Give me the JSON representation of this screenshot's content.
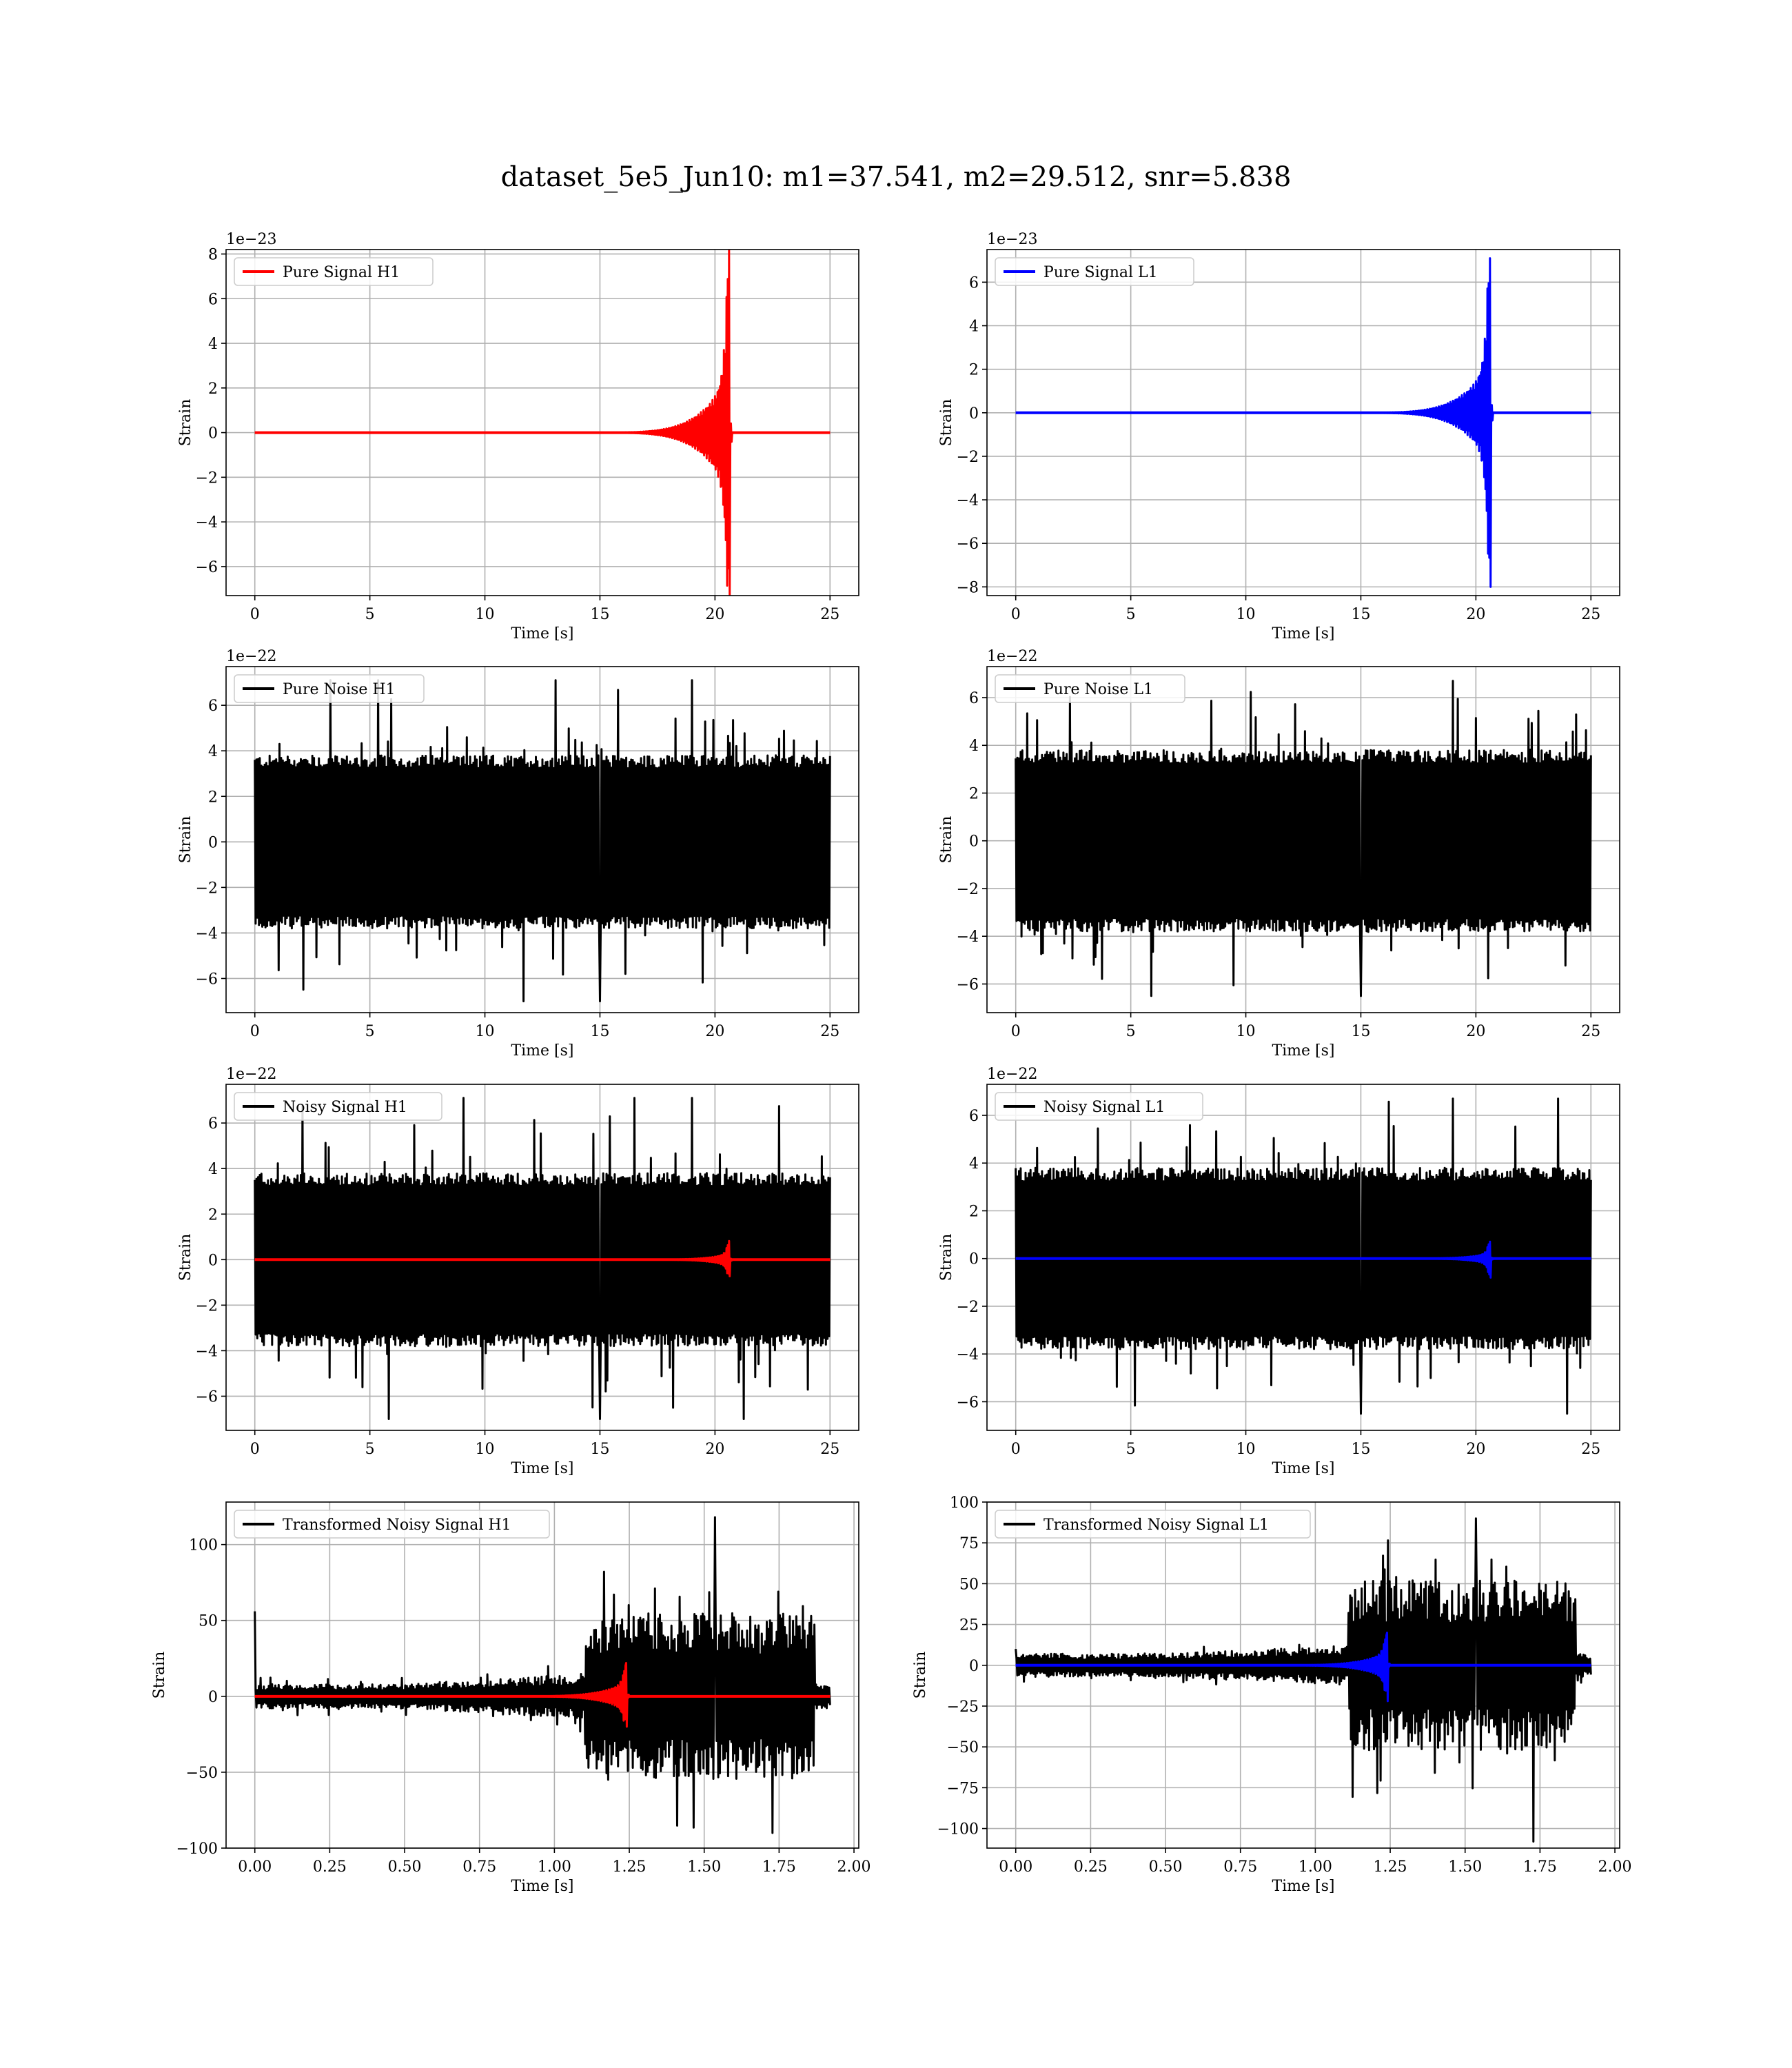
{
  "figure": {
    "suptitle": "dataset_5e5_Jun10: m1=37.541, m2=29.512, snr=5.838"
  },
  "colors": {
    "h1_signal": "#ff0000",
    "l1_signal": "#0000ff",
    "noise": "#000000",
    "grid": "#b0b0b0"
  },
  "chart_data": [
    {
      "id": "p0",
      "type": "line",
      "row": 0,
      "col": 0,
      "xlabel": "Time [s]",
      "ylabel": "Strain",
      "offset_text": "1e−23",
      "xlim": [
        -1.25,
        26.25
      ],
      "ylim": [
        -7.3,
        8.2
      ],
      "xticks": [
        0,
        5,
        10,
        15,
        20,
        25
      ],
      "xtick_labels": [
        "0",
        "5",
        "10",
        "15",
        "20",
        "25"
      ],
      "yticks": [
        -6,
        -4,
        -2,
        0,
        2,
        4,
        6,
        8
      ],
      "ytick_labels": [
        "−6",
        "−4",
        "−2",
        "0",
        "2",
        "4",
        "6",
        "8"
      ],
      "grid": true,
      "legend": "upper-left",
      "series": [
        {
          "name": "Pure Signal H1",
          "color": "#ff0000",
          "kind": "chirp",
          "x_start": 0,
          "x_end": 25,
          "chirp_start": 13,
          "peak_time": 20.6,
          "peak_pos": 8.2,
          "peak_neg": -7.3,
          "envelope_at_19_5": 2.6
        }
      ]
    },
    {
      "id": "p1",
      "type": "line",
      "row": 0,
      "col": 1,
      "xlabel": "Time [s]",
      "ylabel": "Strain",
      "offset_text": "1e−23",
      "xlim": [
        -1.25,
        26.25
      ],
      "ylim": [
        -8.4,
        7.5
      ],
      "xticks": [
        0,
        5,
        10,
        15,
        20,
        25
      ],
      "xtick_labels": [
        "0",
        "5",
        "10",
        "15",
        "20",
        "25"
      ],
      "yticks": [
        -8,
        -6,
        -4,
        -2,
        0,
        2,
        4,
        6
      ],
      "ytick_labels": [
        "−8",
        "−6",
        "−4",
        "−2",
        "0",
        "2",
        "4",
        "6"
      ],
      "grid": true,
      "legend": "upper-left",
      "series": [
        {
          "name": "Pure Signal L1",
          "color": "#0000ff",
          "kind": "chirp",
          "x_start": 0,
          "x_end": 25,
          "chirp_start": 13,
          "peak_time": 20.6,
          "peak_pos": 7.1,
          "peak_neg": -8.0,
          "envelope_at_19_5": 2.3
        }
      ]
    },
    {
      "id": "p2",
      "type": "line",
      "row": 1,
      "col": 0,
      "xlabel": "Time [s]",
      "ylabel": "Strain",
      "offset_text": "1e−22",
      "xlim": [
        -1.25,
        26.25
      ],
      "ylim": [
        -7.5,
        7.7
      ],
      "xticks": [
        0,
        5,
        10,
        15,
        20,
        25
      ],
      "xtick_labels": [
        "0",
        "5",
        "10",
        "15",
        "20",
        "25"
      ],
      "yticks": [
        -6,
        -4,
        -2,
        0,
        2,
        4,
        6
      ],
      "ytick_labels": [
        "−6",
        "−4",
        "−2",
        "0",
        "2",
        "4",
        "6"
      ],
      "grid": true,
      "legend": "upper-left",
      "series": [
        {
          "name": "Pure Noise H1",
          "color": "#000000",
          "kind": "noise",
          "x_start": 0,
          "x_end": 25,
          "band": 3.8,
          "max": 7.1,
          "min": -7.0
        }
      ]
    },
    {
      "id": "p3",
      "type": "line",
      "row": 1,
      "col": 1,
      "xlabel": "Time [s]",
      "ylabel": "Strain",
      "offset_text": "1e−22",
      "xlim": [
        -1.25,
        26.25
      ],
      "ylim": [
        -7.2,
        7.3
      ],
      "xticks": [
        0,
        5,
        10,
        15,
        20,
        25
      ],
      "xtick_labels": [
        "0",
        "5",
        "10",
        "15",
        "20",
        "25"
      ],
      "yticks": [
        -6,
        -4,
        -2,
        0,
        2,
        4,
        6
      ],
      "ytick_labels": [
        "−6",
        "−4",
        "−2",
        "0",
        "2",
        "4",
        "6"
      ],
      "grid": true,
      "legend": "upper-left",
      "series": [
        {
          "name": "Pure Noise L1",
          "color": "#000000",
          "kind": "noise",
          "x_start": 0,
          "x_end": 25,
          "band": 3.8,
          "max": 6.7,
          "min": -6.5
        }
      ]
    },
    {
      "id": "p4",
      "type": "line",
      "row": 2,
      "col": 0,
      "xlabel": "Time [s]",
      "ylabel": "Strain",
      "offset_text": "1e−22",
      "xlim": [
        -1.25,
        26.25
      ],
      "ylim": [
        -7.5,
        7.7
      ],
      "xticks": [
        0,
        5,
        10,
        15,
        20,
        25
      ],
      "xtick_labels": [
        "0",
        "5",
        "10",
        "15",
        "20",
        "25"
      ],
      "yticks": [
        -6,
        -4,
        -2,
        0,
        2,
        4,
        6
      ],
      "ytick_labels": [
        "−6",
        "−4",
        "−2",
        "0",
        "2",
        "4",
        "6"
      ],
      "grid": true,
      "legend": "upper-left",
      "series": [
        {
          "name": "Noisy Signal H1",
          "color": "#000000",
          "kind": "noise",
          "x_start": 0,
          "x_end": 25,
          "band": 3.8,
          "max": 7.1,
          "min": -7.0
        },
        {
          "name": "",
          "color": "#ff0000",
          "kind": "chirp",
          "x_start": 0,
          "x_end": 25,
          "chirp_start": 15,
          "peak_time": 20.6,
          "peak_pos": 0.82,
          "peak_neg": -0.73,
          "envelope_at_19_5": 0.26
        }
      ]
    },
    {
      "id": "p5",
      "type": "line",
      "row": 2,
      "col": 1,
      "xlabel": "Time [s]",
      "ylabel": "Strain",
      "offset_text": "1e−22",
      "xlim": [
        -1.25,
        26.25
      ],
      "ylim": [
        -7.2,
        7.3
      ],
      "xticks": [
        0,
        5,
        10,
        15,
        20,
        25
      ],
      "xtick_labels": [
        "0",
        "5",
        "10",
        "15",
        "20",
        "25"
      ],
      "yticks": [
        -6,
        -4,
        -2,
        0,
        2,
        4,
        6
      ],
      "ytick_labels": [
        "−6",
        "−4",
        "−2",
        "0",
        "2",
        "4",
        "6"
      ],
      "grid": true,
      "legend": "upper-left",
      "series": [
        {
          "name": "Noisy Signal L1",
          "color": "#000000",
          "kind": "noise",
          "x_start": 0,
          "x_end": 25,
          "band": 3.8,
          "max": 6.7,
          "min": -6.5
        },
        {
          "name": "",
          "color": "#0000ff",
          "kind": "chirp",
          "x_start": 0,
          "x_end": 25,
          "chirp_start": 15,
          "peak_time": 20.6,
          "peak_pos": 0.71,
          "peak_neg": -0.8,
          "envelope_at_19_5": 0.23
        }
      ]
    },
    {
      "id": "p6",
      "type": "line",
      "row": 3,
      "col": 0,
      "xlabel": "Time [s]",
      "ylabel": "Strain",
      "offset_text": "",
      "xlim": [
        -0.096,
        2.016
      ],
      "ylim": [
        -100,
        128
      ],
      "xticks": [
        0,
        0.25,
        0.5,
        0.75,
        1.0,
        1.25,
        1.5,
        1.75,
        2.0
      ],
      "xtick_labels": [
        "0.00",
        "0.25",
        "0.50",
        "0.75",
        "1.00",
        "1.25",
        "1.50",
        "1.75",
        "2.00"
      ],
      "yticks": [
        -100,
        -50,
        0,
        50,
        100
      ],
      "ytick_labels": [
        "−100",
        "−50",
        "0",
        "50",
        "100"
      ],
      "grid": true,
      "legend": "upper-left",
      "series": [
        {
          "name": "Transformed Noisy Signal H1",
          "color": "#000000",
          "kind": "whitened",
          "x_start": 0,
          "x_end": 1.92,
          "early_band": 8,
          "mid_band": 15,
          "late_start": 1.1,
          "late_band": 55,
          "late_end": 1.87,
          "max": 118,
          "min": -90,
          "spike_time": 0.0,
          "spike_value": 56
        },
        {
          "name": "",
          "color": "#ff0000",
          "kind": "chirp",
          "x_start": 0,
          "x_end": 1.92,
          "chirp_start": 0.7,
          "peak_time": 1.24,
          "peak_pos": 22,
          "peak_neg": -20,
          "envelope_at_19_5": 9
        }
      ]
    },
    {
      "id": "p7",
      "type": "line",
      "row": 3,
      "col": 1,
      "xlabel": "Time [s]",
      "ylabel": "Strain",
      "offset_text": "",
      "xlim": [
        -0.096,
        2.016
      ],
      "ylim": [
        -112,
        100
      ],
      "xticks": [
        0,
        0.25,
        0.5,
        0.75,
        1.0,
        1.25,
        1.5,
        1.75,
        2.0
      ],
      "xtick_labels": [
        "0.00",
        "0.25",
        "0.50",
        "0.75",
        "1.00",
        "1.25",
        "1.50",
        "1.75",
        "2.00"
      ],
      "yticks": [
        -100,
        -75,
        -50,
        -25,
        0,
        25,
        50,
        75,
        100
      ],
      "ytick_labels": [
        "−100",
        "−75",
        "−50",
        "−25",
        "0",
        "25",
        "50",
        "75",
        "100"
      ],
      "grid": true,
      "legend": "upper-left",
      "series": [
        {
          "name": "Transformed Noisy Signal L1",
          "color": "#000000",
          "kind": "whitened",
          "x_start": 0,
          "x_end": 1.92,
          "early_band": 7,
          "mid_band": 12,
          "late_start": 1.11,
          "late_band": 52,
          "late_end": 1.87,
          "max": 90,
          "min": -108,
          "spike_time": 0.0,
          "spike_value": 10
        },
        {
          "name": "",
          "color": "#0000ff",
          "kind": "chirp",
          "x_start": 0,
          "x_end": 1.92,
          "chirp_start": 0.7,
          "peak_time": 1.24,
          "peak_pos": 20,
          "peak_neg": -22,
          "envelope_at_19_5": 8
        }
      ]
    }
  ]
}
